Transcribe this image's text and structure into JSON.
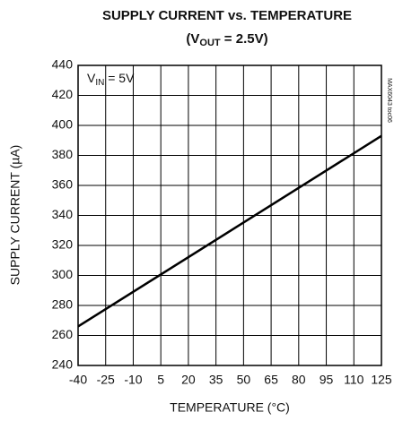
{
  "chart_data": {
    "type": "line",
    "title": "SUPPLY CURRENT vs. TEMPERATURE",
    "subtitle_parts": [
      "(V",
      "OUT",
      " = 2.5V)"
    ],
    "annotation_parts": [
      "V",
      "IN",
      " = 5V"
    ],
    "side_label": "MAX6043 toc06",
    "x_label": "TEMPERATURE (°C)",
    "y_label": "SUPPLY CURRENT (µA)",
    "x": [
      -40,
      125
    ],
    "values": [
      266,
      393
    ],
    "color": "#000000",
    "xlim": [
      -40,
      125
    ],
    "xticks": [
      -40,
      -25,
      -10,
      5,
      20,
      35,
      50,
      65,
      80,
      95,
      110,
      125
    ],
    "ylim": [
      240,
      440
    ],
    "yticks": [
      240,
      260,
      280,
      300,
      320,
      340,
      360,
      380,
      400,
      420,
      440
    ],
    "grid": true
  }
}
